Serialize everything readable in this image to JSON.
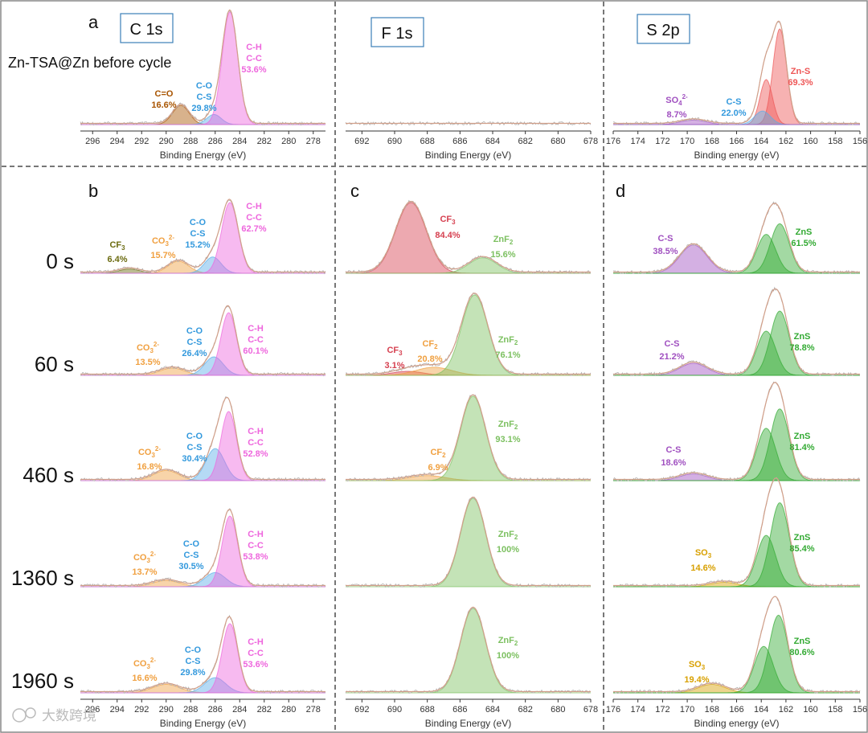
{
  "panel_letters": [
    "a",
    "b",
    "c",
    "d"
  ],
  "element_labels": [
    "C 1s",
    "F 1s",
    "S 2p"
  ],
  "header_note": "Zn-TSA@Zn before cycle",
  "time_labels": [
    "0 s",
    "60 s",
    "460 s",
    "1360 s",
    "1960 s"
  ],
  "watermark": "大数跨境",
  "chart_data": {
    "type": "xps-stacked-spectra",
    "columns": [
      {
        "element": "C 1s",
        "xlabel": "Binding Energy (eV)",
        "xlim": [
          297,
          277
        ],
        "ticks": [
          296,
          294,
          292,
          290,
          288,
          286,
          284,
          282,
          280,
          278
        ]
      },
      {
        "element": "F 1s",
        "xlabel": "Binding Energy (eV)",
        "xlim": [
          693,
          678
        ],
        "ticks": [
          692,
          690,
          688,
          686,
          684,
          682,
          680,
          678
        ]
      },
      {
        "element": "S 2p",
        "xlabel": "Binding energy (eV)",
        "xlim": [
          176,
          156
        ],
        "ticks": [
          176,
          174,
          172,
          170,
          168,
          166,
          164,
          162,
          160,
          158,
          156
        ]
      }
    ],
    "colors": {
      "CH": "#ee66dd",
      "CO": "#5aaee8",
      "CO_dark": "#3399dd",
      "CEO": "#a85400",
      "CO3": "#f0a040",
      "CF3_c": "#6b6b10",
      "CF3_f": "#d64050",
      "CF2": "#f0a040",
      "ZnF2": "#7cc060",
      "ZnS": "#33aa33",
      "CS": "#a050c0",
      "ZnS_top": "#ee5555",
      "SO4": "#a050c0",
      "SO3": "#d8a000"
    },
    "spectra": [
      {
        "row": "before",
        "col": 0,
        "peaks": [
          {
            "name": "C=O",
            "pos": 288.8,
            "fwhm": 1.6,
            "height": 0.17,
            "pct": "16.6%",
            "color": "#a85400"
          },
          {
            "name": "C-O C-S",
            "pos": 286.1,
            "fwhm": 1.4,
            "height": 0.09,
            "pct": "29.8%",
            "color": "#5aaee8"
          },
          {
            "name": "C-H C-C",
            "pos": 284.8,
            "fwhm": 1.5,
            "height": 1.0,
            "pct": "53.6%",
            "color": "#ee66dd"
          }
        ]
      },
      {
        "row": "before",
        "col": 1,
        "peaks": []
      },
      {
        "row": "before",
        "col": 2,
        "peaks": [
          {
            "name": "Zn-S",
            "pos": 162.5,
            "fwhm": 1.3,
            "height": 0.85,
            "pct": "69.3%",
            "color": "#ee5555"
          },
          {
            "name": "Zn-S 2p1/2",
            "pos": 163.6,
            "fwhm": 1.2,
            "height": 0.4,
            "pct": "",
            "color": "#ee5555"
          },
          {
            "name": "C-S",
            "pos": 163.9,
            "fwhm": 1.5,
            "height": 0.12,
            "pct": "22.0%",
            "color": "#5aaee8"
          },
          {
            "name": "SO4 2-",
            "pos": 169.5,
            "fwhm": 2.5,
            "height": 0.04,
            "pct": "8.7%",
            "color": "#a050c0"
          }
        ]
      },
      {
        "row": "0 s",
        "col": 0,
        "peaks": [
          {
            "name": "CF3",
            "pos": 293.0,
            "fwhm": 2.0,
            "height": 0.06,
            "pct": "6.4%",
            "color": "#6b6b10"
          },
          {
            "name": "CO3 2-",
            "pos": 289.0,
            "fwhm": 2.0,
            "height": 0.17,
            "pct": "15.7%",
            "color": "#f0a040"
          },
          {
            "name": "C-O C-S",
            "pos": 286.2,
            "fwhm": 1.6,
            "height": 0.23,
            "pct": "15.2%",
            "color": "#5aaee8"
          },
          {
            "name": "C-H C-C",
            "pos": 284.8,
            "fwhm": 1.6,
            "height": 1.0,
            "pct": "62.7%",
            "color": "#ee66dd"
          }
        ]
      },
      {
        "row": "0 s",
        "col": 1,
        "peaks": [
          {
            "name": "CF3",
            "pos": 689.0,
            "fwhm": 2.2,
            "height": 1.0,
            "pct": "84.4%",
            "color": "#d64050"
          },
          {
            "name": "ZnF2",
            "pos": 684.6,
            "fwhm": 2.0,
            "height": 0.22,
            "pct": "15.6%",
            "color": "#7cc060"
          }
        ]
      },
      {
        "row": "0 s",
        "col": 2,
        "peaks": [
          {
            "name": "C-S",
            "pos": 169.5,
            "fwhm": 2.6,
            "height": 0.4,
            "pct": "38.5%",
            "color": "#a050c0"
          },
          {
            "name": "ZnS",
            "pos": 163.6,
            "fwhm": 1.8,
            "height": 0.55,
            "pct": "",
            "color": "#33aa33"
          },
          {
            "name": "ZnS",
            "pos": 162.5,
            "fwhm": 1.8,
            "height": 0.7,
            "pct": "61.5%",
            "color": "#33aa33"
          }
        ]
      },
      {
        "row": "60 s",
        "col": 0,
        "peaks": [
          {
            "name": "CO3 2-",
            "pos": 289.5,
            "fwhm": 2.4,
            "height": 0.09,
            "pct": "13.5%",
            "color": "#f0a040"
          },
          {
            "name": "C-O C-S",
            "pos": 286.1,
            "fwhm": 1.8,
            "height": 0.23,
            "pct": "26.4%",
            "color": "#5aaee8"
          },
          {
            "name": "C-H C-C",
            "pos": 284.9,
            "fwhm": 1.5,
            "height": 0.78,
            "pct": "60.1%",
            "color": "#ee66dd"
          }
        ]
      },
      {
        "row": "60 s",
        "col": 1,
        "peaks": [
          {
            "name": "CF3",
            "pos": 689.2,
            "fwhm": 2.2,
            "height": 0.05,
            "pct": "3.1%",
            "color": "#d64050"
          },
          {
            "name": "CF2",
            "pos": 687.6,
            "fwhm": 2.6,
            "height": 0.1,
            "pct": "20.8%",
            "color": "#f0a040"
          },
          {
            "name": "ZnF2",
            "pos": 685.1,
            "fwhm": 1.9,
            "height": 1.0,
            "pct": "76.1%",
            "color": "#7cc060"
          }
        ]
      },
      {
        "row": "60 s",
        "col": 2,
        "peaks": [
          {
            "name": "C-S",
            "pos": 169.5,
            "fwhm": 2.6,
            "height": 0.15,
            "pct": "21.2%",
            "color": "#a050c0"
          },
          {
            "name": "ZnS",
            "pos": 163.6,
            "fwhm": 1.8,
            "height": 0.55,
            "pct": "",
            "color": "#33aa33"
          },
          {
            "name": "ZnS",
            "pos": 162.5,
            "fwhm": 1.8,
            "height": 0.8,
            "pct": "78.8%",
            "color": "#33aa33"
          }
        ]
      },
      {
        "row": "460 s",
        "col": 0,
        "peaks": [
          {
            "name": "CO3 2-",
            "pos": 290.0,
            "fwhm": 2.4,
            "height": 0.12,
            "pct": "16.8%",
            "color": "#f0a040"
          },
          {
            "name": "C-O C-S",
            "pos": 286.0,
            "fwhm": 1.8,
            "height": 0.38,
            "pct": "30.4%",
            "color": "#5aaee8"
          },
          {
            "name": "C-H C-C",
            "pos": 284.9,
            "fwhm": 1.5,
            "height": 0.82,
            "pct": "52.8%",
            "color": "#ee66dd"
          }
        ]
      },
      {
        "row": "460 s",
        "col": 1,
        "peaks": [
          {
            "name": "CF2",
            "pos": 688.0,
            "fwhm": 2.6,
            "height": 0.06,
            "pct": "6.9%",
            "color": "#f0a040"
          },
          {
            "name": "ZnF2",
            "pos": 685.2,
            "fwhm": 1.8,
            "height": 1.0,
            "pct": "93.1%",
            "color": "#7cc060"
          }
        ]
      },
      {
        "row": "460 s",
        "col": 2,
        "peaks": [
          {
            "name": "C-S",
            "pos": 169.5,
            "fwhm": 2.6,
            "height": 0.08,
            "pct": "18.6%",
            "color": "#a050c0"
          },
          {
            "name": "ZnS",
            "pos": 163.6,
            "fwhm": 1.8,
            "height": 0.62,
            "pct": "",
            "color": "#33aa33"
          },
          {
            "name": "ZnS",
            "pos": 162.5,
            "fwhm": 1.8,
            "height": 0.85,
            "pct": "81.4%",
            "color": "#33aa33"
          }
        ]
      },
      {
        "row": "1360 s",
        "col": 0,
        "peaks": [
          {
            "name": "CO3 2-",
            "pos": 290.0,
            "fwhm": 2.6,
            "height": 0.07,
            "pct": "13.7%",
            "color": "#f0a040"
          },
          {
            "name": "C-O C-S",
            "pos": 286.0,
            "fwhm": 2.0,
            "height": 0.16,
            "pct": "30.5%",
            "color": "#5aaee8"
          },
          {
            "name": "C-H C-C",
            "pos": 284.8,
            "fwhm": 1.5,
            "height": 0.8,
            "pct": "53.8%",
            "color": "#ee66dd"
          }
        ]
      },
      {
        "row": "1360 s",
        "col": 1,
        "peaks": [
          {
            "name": "ZnF2",
            "pos": 685.2,
            "fwhm": 1.8,
            "height": 1.0,
            "pct": "100%",
            "color": "#7cc060"
          }
        ]
      },
      {
        "row": "1360 s",
        "col": 2,
        "peaks": [
          {
            "name": "SO3",
            "pos": 167.0,
            "fwhm": 2.6,
            "height": 0.05,
            "pct": "14.6%",
            "color": "#d8a000"
          },
          {
            "name": "ZnS",
            "pos": 163.6,
            "fwhm": 1.8,
            "height": 0.58,
            "pct": "",
            "color": "#33aa33"
          },
          {
            "name": "ZnS",
            "pos": 162.5,
            "fwhm": 1.8,
            "height": 0.95,
            "pct": "85.4%",
            "color": "#33aa33"
          }
        ]
      },
      {
        "row": "1960 s",
        "col": 0,
        "peaks": [
          {
            "name": "CO3 2-",
            "pos": 290.0,
            "fwhm": 2.6,
            "height": 0.1,
            "pct": "16.6%",
            "color": "#f0a040"
          },
          {
            "name": "C-O C-S",
            "pos": 286.0,
            "fwhm": 2.0,
            "height": 0.18,
            "pct": "29.8%",
            "color": "#5aaee8"
          },
          {
            "name": "C-H C-C",
            "pos": 284.8,
            "fwhm": 1.5,
            "height": 0.82,
            "pct": "53.6%",
            "color": "#ee66dd"
          }
        ]
      },
      {
        "row": "1960 s",
        "col": 1,
        "peaks": [
          {
            "name": "ZnF2",
            "pos": 685.2,
            "fwhm": 1.8,
            "height": 1.0,
            "pct": "100%",
            "color": "#7cc060"
          }
        ]
      },
      {
        "row": "1960 s",
        "col": 2,
        "peaks": [
          {
            "name": "SO3",
            "pos": 168.0,
            "fwhm": 2.6,
            "height": 0.1,
            "pct": "19.4%",
            "color": "#d8a000"
          },
          {
            "name": "ZnS",
            "pos": 163.8,
            "fwhm": 1.8,
            "height": 0.55,
            "pct": "",
            "color": "#33aa33"
          },
          {
            "name": "ZnS",
            "pos": 162.6,
            "fwhm": 1.8,
            "height": 0.92,
            "pct": "80.6%",
            "color": "#33aa33"
          }
        ]
      }
    ]
  }
}
